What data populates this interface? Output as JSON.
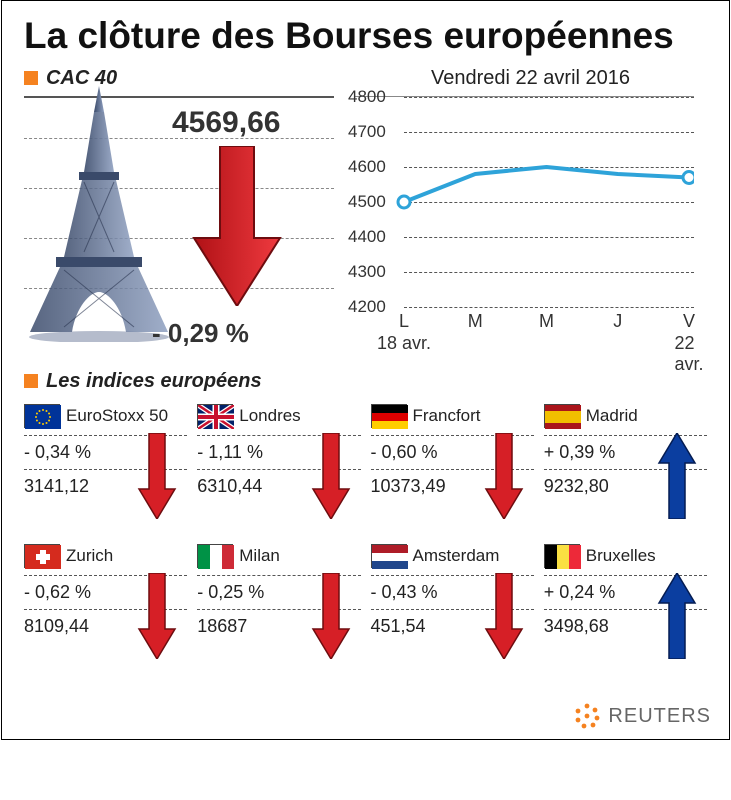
{
  "title": "La clôture des Bourses européennes",
  "cac": {
    "section_label": "CAC 40",
    "value": "4569,66",
    "pct": "- 0,29 %",
    "arrow_fill": "#d61f26",
    "arrow_stroke": "#6e0c0f",
    "direction": "down"
  },
  "chart": {
    "date": "Vendredi 22 avril 2016",
    "y_ticks": [
      4800,
      4700,
      4600,
      4500,
      4400,
      4300,
      4200
    ],
    "ylim": [
      4200,
      4800
    ],
    "x_labels": [
      "L",
      "M",
      "M",
      "J",
      "V"
    ],
    "x_date_left": "18 avr.",
    "x_date_right": "22 avr.",
    "values": [
      4500,
      4580,
      4600,
      4580,
      4570
    ],
    "line_color": "#2ea3d9",
    "marker_fill": "#ffffff",
    "marker_stroke": "#2ea3d9",
    "grid_color": "#555555",
    "label_fontsize": 17
  },
  "indices_label": "Les indices européens",
  "indices": [
    {
      "name": "EuroStoxx 50",
      "pct": "- 0,34  %",
      "value": "3141,12",
      "dir": "down",
      "flag": "eu"
    },
    {
      "name": "Londres",
      "pct": "- 1,11  %",
      "value": "6310,44",
      "dir": "down",
      "flag": "uk"
    },
    {
      "name": "Francfort",
      "pct": "- 0,60  %",
      "value": "10373,49",
      "dir": "down",
      "flag": "de"
    },
    {
      "name": "Madrid",
      "pct": "+ 0,39 %",
      "value": "9232,80",
      "dir": "up",
      "flag": "es"
    },
    {
      "name": "Zurich",
      "pct": "- 0,62  %",
      "value": "8109,44",
      "dir": "down",
      "flag": "ch"
    },
    {
      "name": "Milan",
      "pct": "- 0,25  %",
      "value": "18687",
      "dir": "down",
      "flag": "it"
    },
    {
      "name": "Amsterdam",
      "pct": "- 0,43  %",
      "value": "451,54",
      "dir": "down",
      "flag": "nl"
    },
    {
      "name": "Bruxelles",
      "pct": "+ 0,24 %",
      "value": "3498,68",
      "dir": "up",
      "flag": "be"
    }
  ],
  "arrow_colors": {
    "down_fill": "#d61f26",
    "down_stroke": "#6e0c0f",
    "up_fill": "#0b3ea0",
    "up_stroke": "#041c52"
  },
  "footer": {
    "text": "REUTERS",
    "dot_color": "#f58220"
  },
  "accent_square": "#f58220"
}
